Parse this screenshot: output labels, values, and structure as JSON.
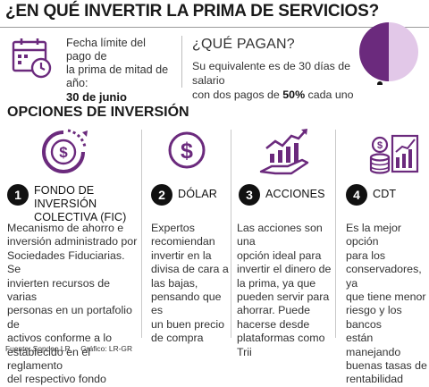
{
  "header": {
    "title": "¿EN QUÉ INVERTIR LA PRIMA DE SERVICIOS?"
  },
  "deadline": {
    "icon": "calendar-clock-icon",
    "line1": "Fecha límite del pago de",
    "line2": "la prima de mitad de año:",
    "value": "30 de junio"
  },
  "payment": {
    "title": "¿QUÉ PAGAN?",
    "line1": "Su equivalente es de 30 días de salario",
    "line2_pre": "con dos pagos de ",
    "line2_bold": "50%",
    "line2_post": " cada uno",
    "chart_data": {
      "type": "pie",
      "title": "",
      "values": [
        50,
        50
      ],
      "colors": [
        "#6b2a7d",
        "#e2c8e8"
      ]
    }
  },
  "section": {
    "title": "OPCIONES DE INVERSIÓN"
  },
  "options": [
    {
      "number": "1",
      "name_line1": "FONDO DE INVERSIÓN",
      "name_line2": "COLECTIVA (FIC)",
      "icon": "coin-circle-chart-icon",
      "lines": [
        "Mecanismo de ahorro e",
        "inversión administrado por",
        "Sociedades Fiduciarias. Se",
        "invierten recursos de varias",
        "personas en un portafolio de",
        "activos conforme a lo",
        "establecido en el reglamento",
        "del respectivo fondo"
      ]
    },
    {
      "number": "2",
      "name_line1": "DÓLAR",
      "name_line2": "",
      "icon": "dollar-circle-icon",
      "lines": [
        "Expertos",
        "recomiendan",
        "invertir en la",
        "divisa de cara a",
        "las bajas,",
        "pensando que es",
        "un buen precio",
        "de compra"
      ]
    },
    {
      "number": "3",
      "name_line1": "ACCIONES",
      "name_line2": "",
      "icon": "hand-growth-chart-icon",
      "lines": [
        "Las acciones son una",
        "opción ideal para",
        "invertir el dinero de",
        "la prima, ya que",
        "pueden servir para",
        "ahorrar. Puede",
        "hacerse desde",
        "plataformas como Trii"
      ]
    },
    {
      "number": "4",
      "name_line1": "CDT",
      "name_line2": "",
      "icon": "coins-chart-icon",
      "lines": [
        "Es la mejor opción",
        "para los",
        "conservadores, ya",
        "que tiene menor",
        "riesgo y los bancos",
        "están manejando",
        "buenas tasas de",
        "rentabilidad"
      ]
    }
  ],
  "footer": {
    "source": "Fuente: Sondeo LR",
    "graphic": "Gráfico: LR-GR"
  },
  "colors": {
    "accent": "#6b2a7d",
    "accent_light": "#e2c8e8",
    "text": "#2b2b2b"
  }
}
